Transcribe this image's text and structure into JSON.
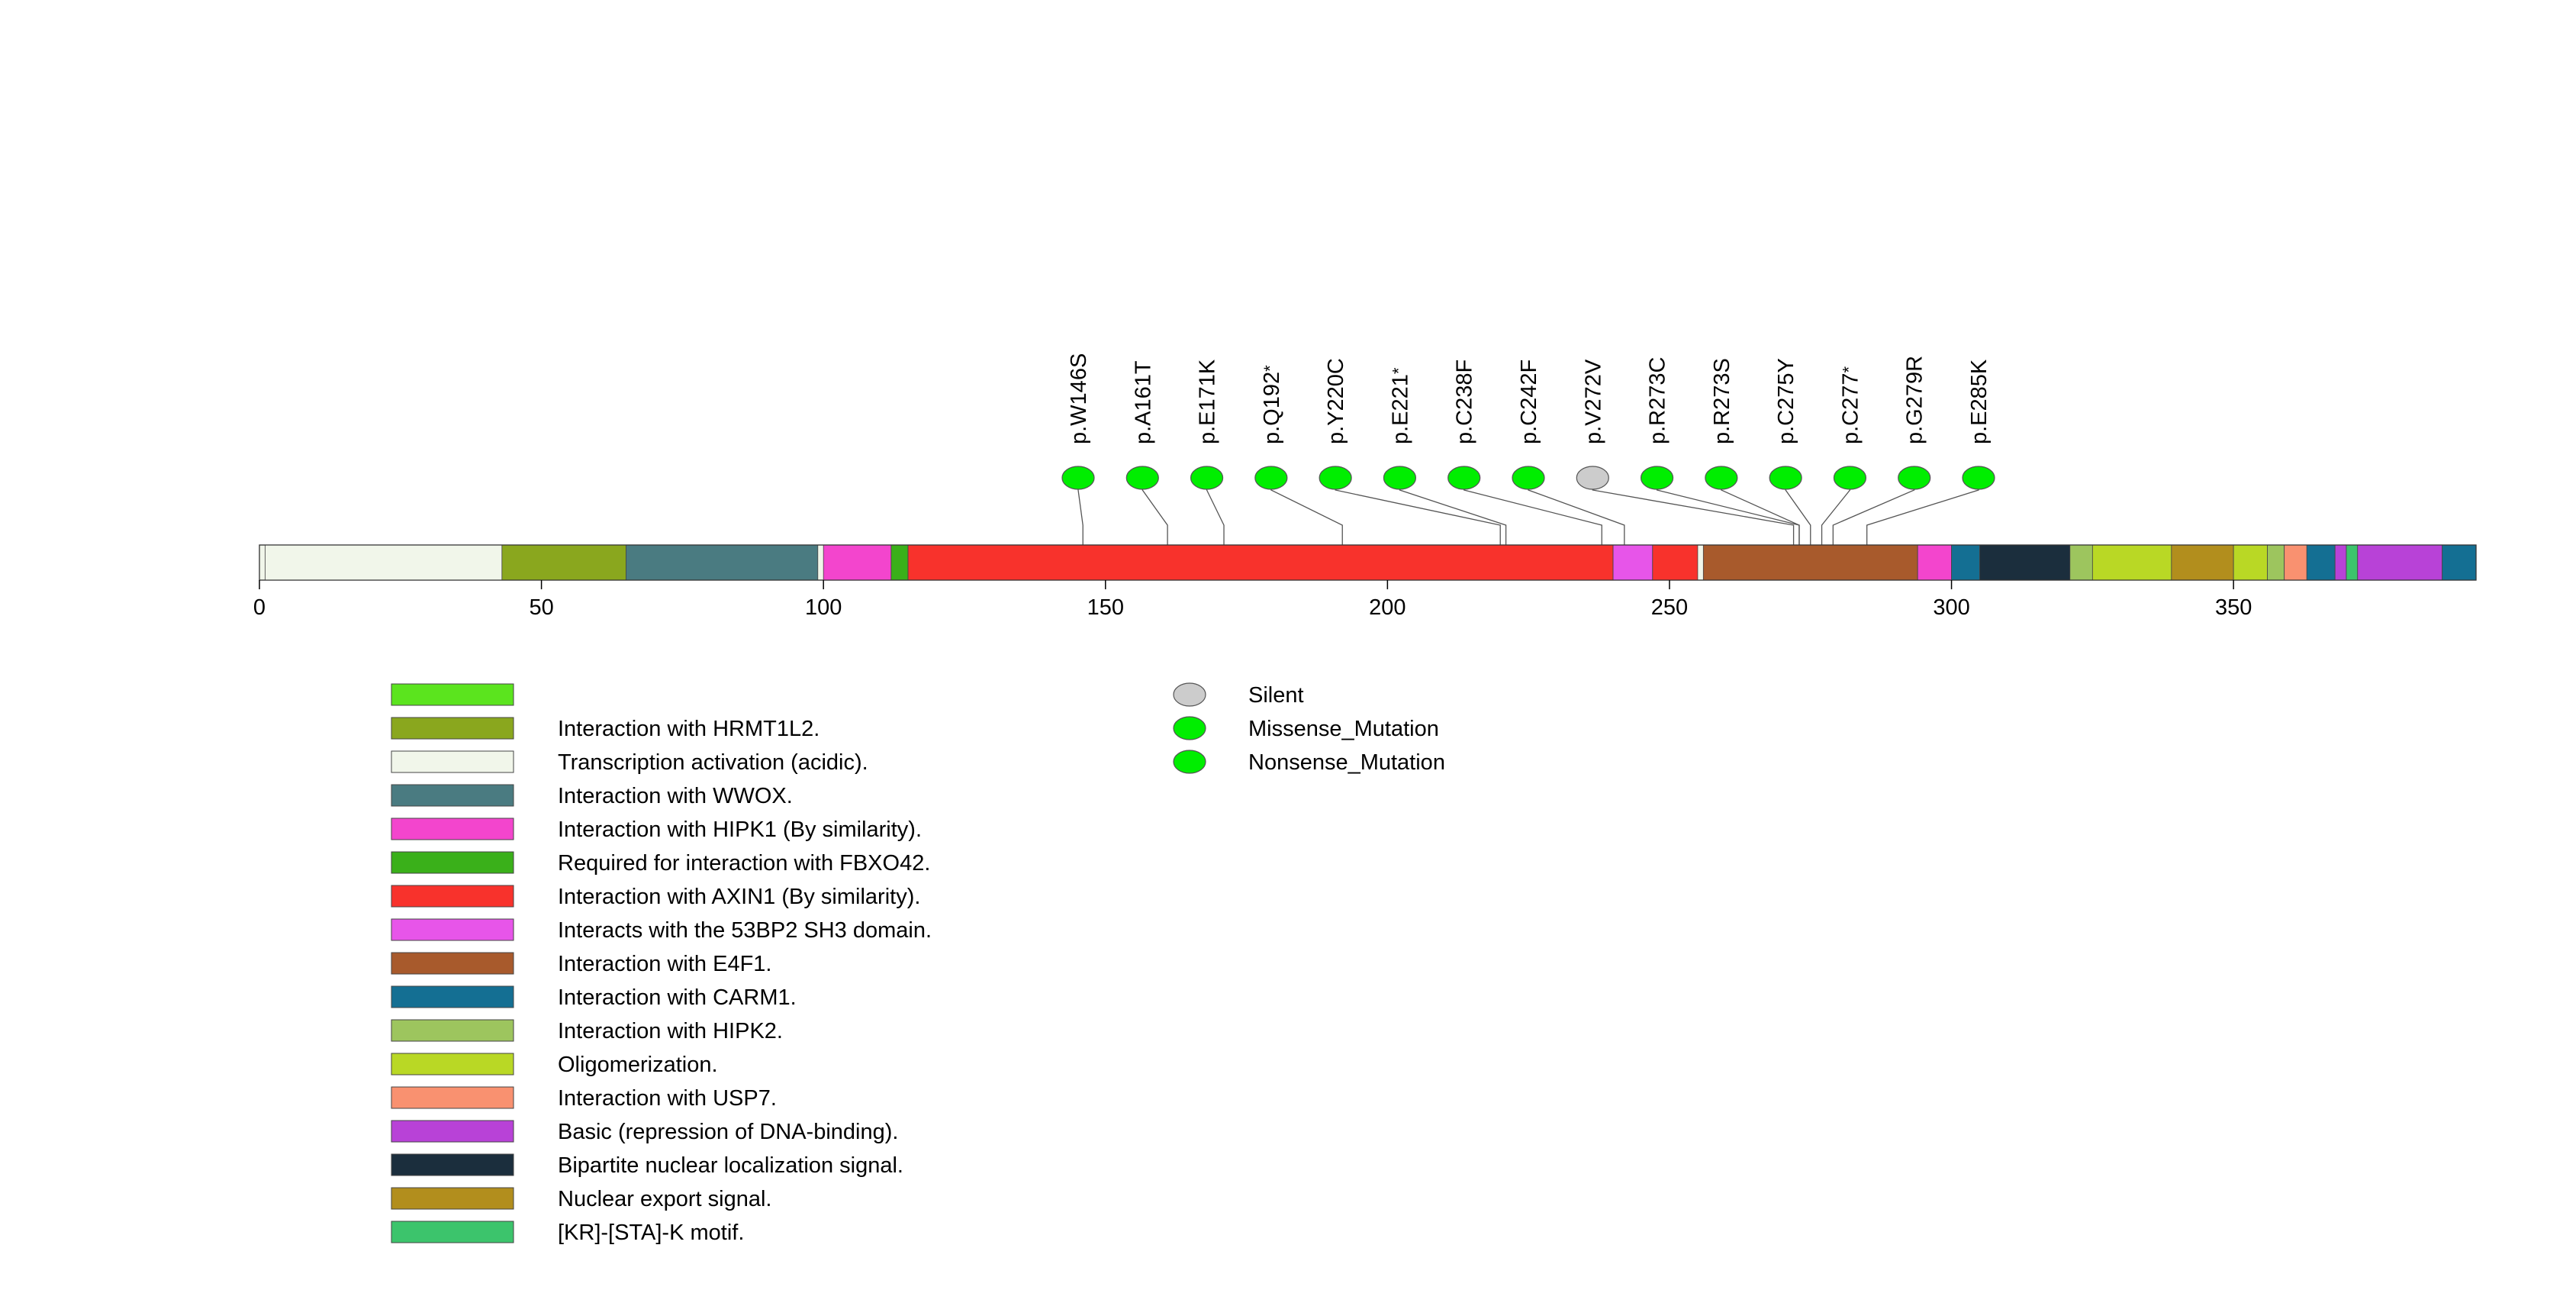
{
  "chart_data": {
    "type": "lollipop",
    "title": "",
    "xlabel": "",
    "ylabel": "",
    "xlim": [
      0,
      393
    ],
    "x_ticks": [
      0,
      50,
      100,
      150,
      200,
      250,
      300,
      350
    ],
    "protein_length": 393,
    "domains": [
      {
        "start": 1,
        "end": 43,
        "label": "Transcription activation (acidic).",
        "color": "#f1f6ea"
      },
      {
        "start": 43,
        "end": 65,
        "label": "Interaction with HRMT1L2.",
        "color": "#8aa71e"
      },
      {
        "start": 65,
        "end": 99,
        "label": "Interaction with WWOX.",
        "color": "#4a7b81"
      },
      {
        "start": 100,
        "end": 112,
        "label": "Interaction with HIPK1 (By similarity).",
        "color": "#f345cd"
      },
      {
        "start": 112,
        "end": 115,
        "label": "Required for interaction with FBXO42.",
        "color": "#3ab01a"
      },
      {
        "start": 115,
        "end": 240,
        "label": "Interaction with AXIN1 (By similarity).",
        "color": "#f8322c"
      },
      {
        "start": 240,
        "end": 247,
        "label": "Interacts with the 53BP2 SH3 domain.",
        "color": "#e755e9"
      },
      {
        "start": 247,
        "end": 255,
        "label": "Interaction with AXIN1 (By similarity).",
        "color": "#f8322c"
      },
      {
        "start": 256,
        "end": 294,
        "label": "Interaction with E4F1.",
        "color": "#a85a2c"
      },
      {
        "start": 294,
        "end": 300,
        "label": "Interaction with HIPK1 (By similarity).",
        "color": "#f345cd"
      },
      {
        "start": 300,
        "end": 305,
        "label": "Interaction with CARM1.",
        "color": "#146f93"
      },
      {
        "start": 305,
        "end": 321,
        "label": "Bipartite nuclear localization signal.",
        "color": "#1b2e3d"
      },
      {
        "start": 321,
        "end": 325,
        "label": "Interaction with HIPK2.",
        "color": "#9dc55e"
      },
      {
        "start": 325,
        "end": 339,
        "label": "Oligomerization.",
        "color": "#b9d825"
      },
      {
        "start": 339,
        "end": 350,
        "label": "Nuclear export signal.",
        "color": "#b28e1d"
      },
      {
        "start": 350,
        "end": 356,
        "label": "Oligomerization.",
        "color": "#b9d825"
      },
      {
        "start": 356,
        "end": 359,
        "label": "Interaction with HIPK2.",
        "color": "#9dc55e"
      },
      {
        "start": 359,
        "end": 363,
        "label": "Interaction with USP7.",
        "color": "#f99170"
      },
      {
        "start": 363,
        "end": 368,
        "label": "Interaction with CARM1.",
        "color": "#146f93"
      },
      {
        "start": 368,
        "end": 370,
        "label": "Basic (repression of DNA-binding).",
        "color": "#b842d7"
      },
      {
        "start": 370,
        "end": 372,
        "label": "[KR]-[STA]-K motif.",
        "color": "#3cc46c"
      },
      {
        "start": 372,
        "end": 387,
        "label": "Basic (repression of DNA-binding).",
        "color": "#b842d7"
      },
      {
        "start": 387,
        "end": 393,
        "label": "Interaction with CARM1.",
        "color": "#146f93"
      }
    ],
    "mutations": [
      {
        "position": 146,
        "label": "p.W146S",
        "type": "Missense_Mutation",
        "star": false
      },
      {
        "position": 161,
        "label": "p.A161T",
        "type": "Missense_Mutation",
        "star": false
      },
      {
        "position": 171,
        "label": "p.E171K",
        "type": "Missense_Mutation",
        "star": false
      },
      {
        "position": 192,
        "label": "p.Q192",
        "type": "Nonsense_Mutation",
        "star": true
      },
      {
        "position": 220,
        "label": "p.Y220C",
        "type": "Missense_Mutation",
        "star": false
      },
      {
        "position": 221,
        "label": "p.E221",
        "type": "Nonsense_Mutation",
        "star": true
      },
      {
        "position": 238,
        "label": "p.C238F",
        "type": "Missense_Mutation",
        "star": false
      },
      {
        "position": 242,
        "label": "p.C242F",
        "type": "Missense_Mutation",
        "star": false
      },
      {
        "position": 272,
        "label": "p.V272V",
        "type": "Silent",
        "star": false
      },
      {
        "position": 273,
        "label": "p.R273C",
        "type": "Missense_Mutation",
        "star": false
      },
      {
        "position": 273,
        "label": "p.R273S",
        "type": "Missense_Mutation",
        "star": false
      },
      {
        "position": 275,
        "label": "p.C275Y",
        "type": "Missense_Mutation",
        "star": false
      },
      {
        "position": 277,
        "label": "p.C277",
        "type": "Nonsense_Mutation",
        "star": true
      },
      {
        "position": 279,
        "label": "p.G279R",
        "type": "Missense_Mutation",
        "star": false
      },
      {
        "position": 285,
        "label": "p.E285K",
        "type": "Missense_Mutation",
        "star": false
      }
    ],
    "domain_legend": [
      {
        "label": "",
        "color": "#5be41e"
      },
      {
        "label": "Interaction with HRMT1L2.",
        "color": "#8aa71e"
      },
      {
        "label": "Transcription activation (acidic).",
        "color": "#f1f6ea"
      },
      {
        "label": "Interaction with WWOX.",
        "color": "#4a7b81"
      },
      {
        "label": "Interaction with HIPK1 (By similarity).",
        "color": "#f345cd"
      },
      {
        "label": "Required for interaction with FBXO42.",
        "color": "#3ab01a"
      },
      {
        "label": "Interaction with AXIN1 (By similarity).",
        "color": "#f8322c"
      },
      {
        "label": "Interacts with the 53BP2 SH3 domain.",
        "color": "#e755e9"
      },
      {
        "label": "Interaction with E4F1.",
        "color": "#a85a2c"
      },
      {
        "label": "Interaction with CARM1.",
        "color": "#146f93"
      },
      {
        "label": "Interaction with HIPK2.",
        "color": "#9dc55e"
      },
      {
        "label": "Oligomerization.",
        "color": "#b9d825"
      },
      {
        "label": "Interaction with USP7.",
        "color": "#f99170"
      },
      {
        "label": "Basic (repression of DNA-binding).",
        "color": "#b842d7"
      },
      {
        "label": "Bipartite nuclear localization signal.",
        "color": "#1b2e3d"
      },
      {
        "label": "Nuclear export signal.",
        "color": "#b28e1d"
      },
      {
        "label": "[KR]-[STA]-K motif.",
        "color": "#3cc46c"
      }
    ],
    "mutation_legend": [
      {
        "label": "Silent",
        "color": "#cccccc"
      },
      {
        "label": "Missense_Mutation",
        "color": "#00ee00"
      },
      {
        "label": "Nonsense_Mutation",
        "color": "#00ee00"
      }
    ],
    "star_symbol": "*"
  }
}
